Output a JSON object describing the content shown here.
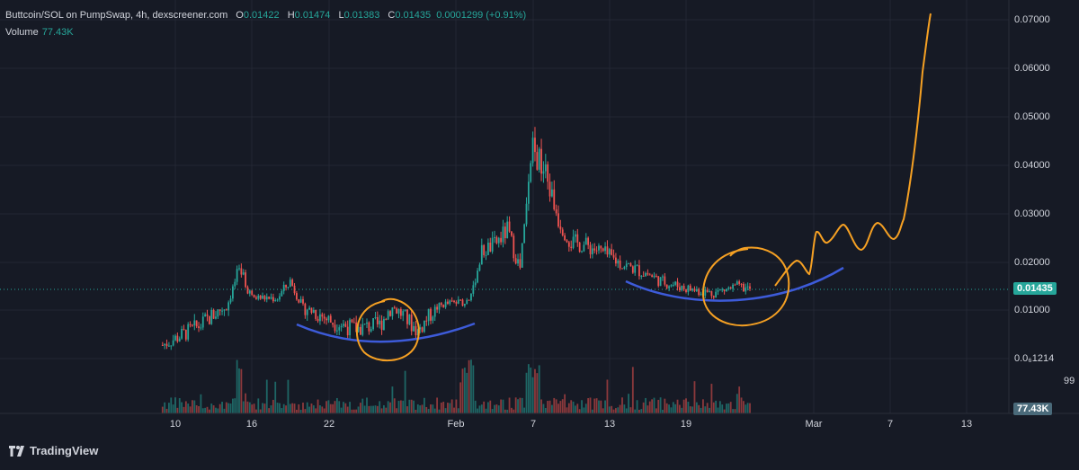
{
  "legend": {
    "title": "Buttcoin/SOL on PumpSwap, 4h, dexscreener.com",
    "o_label": "O",
    "o_value": "0.01422",
    "h_label": "H",
    "h_value": "0.01474",
    "l_label": "L",
    "l_value": "0.01383",
    "c_label": "C",
    "c_value": "0.01435",
    "change": "0.0001299 (+0.91%)",
    "volume_label": "Volume",
    "volume_value": "77.43K"
  },
  "price_axis": [
    "0.07000",
    "0.06000",
    "0.05000",
    "0.04000",
    "0.03000",
    "0.02000",
    "0.01000",
    "0.0₆1214"
  ],
  "volume_axis_partial": "99",
  "current_price_badge": "0.01435",
  "current_volume_badge": "77.43K",
  "time_axis": [
    "10",
    "16",
    "22",
    "Feb",
    "7",
    "13",
    "19",
    "Mar",
    "7",
    "13"
  ],
  "branding": {
    "name": "TradingView"
  },
  "colors": {
    "background": "#161a25",
    "up": "#26a69a",
    "down": "#ef5350",
    "badge_price": "#26a69a",
    "badge_volume": "#4a6a7a",
    "drawing_orange": "#f5a023",
    "drawing_blue": "#3d5bd9",
    "grid": "#232734"
  },
  "chart_data": {
    "type": "candlestick",
    "pair": "Buttcoin/SOL",
    "timeframe": "4h",
    "ylim": [
      0.0061214,
      0.07
    ],
    "last_close": 0.01435,
    "last_volume": "77.43K",
    "path_anchors": [
      [
        "Jan 9",
        0.0072
      ],
      [
        "Jan 12",
        0.0088
      ],
      [
        "Jan 14",
        0.0105
      ],
      [
        "Jan 15",
        0.0185
      ],
      [
        "Jan 16",
        0.0125
      ],
      [
        "Jan 18",
        0.0125
      ],
      [
        "Jan 19",
        0.016
      ],
      [
        "Jan 20",
        0.0105
      ],
      [
        "Jan 22",
        0.0092
      ],
      [
        "Jan 24",
        0.0085
      ],
      [
        "Jan 26",
        0.0088
      ],
      [
        "Jan 27",
        0.0105
      ],
      [
        "Jan 29",
        0.0083
      ],
      [
        "Jan 31",
        0.0112
      ],
      [
        "Feb 2",
        0.0118
      ],
      [
        "Feb 3",
        0.022
      ],
      [
        "Feb 4",
        0.0235
      ],
      [
        "Feb 5",
        0.0265
      ],
      [
        "Feb 6",
        0.0185
      ],
      [
        "Feb 7",
        0.043
      ],
      [
        "Feb 8",
        0.038
      ],
      [
        "Feb 9",
        0.029
      ],
      [
        "Feb 10",
        0.024
      ],
      [
        "Feb 11",
        0.0235
      ],
      [
        "Feb 12",
        0.0225
      ],
      [
        "Feb 14",
        0.0195
      ],
      [
        "Feb 16",
        0.0175
      ],
      [
        "Feb 17",
        0.016
      ],
      [
        "Feb 19",
        0.0145
      ],
      [
        "Feb 21",
        0.0135
      ],
      [
        "Feb 23",
        0.0148
      ],
      [
        "Feb 24",
        0.0143
      ]
    ],
    "annotations": [
      {
        "kind": "ellipse",
        "color": "orange",
        "around": "Jan 25 - Jan 29"
      },
      {
        "kind": "ellipse",
        "color": "orange",
        "around": "Feb 19 - Feb 24"
      },
      {
        "kind": "arc",
        "color": "blue",
        "span": "Jan 20 - Feb 3"
      },
      {
        "kind": "arc",
        "color": "blue",
        "span": "Feb 14 - Feb 27"
      },
      {
        "kind": "projection",
        "color": "orange",
        "span": "Feb 25 - Mar 10",
        "target": 0.07
      }
    ]
  }
}
